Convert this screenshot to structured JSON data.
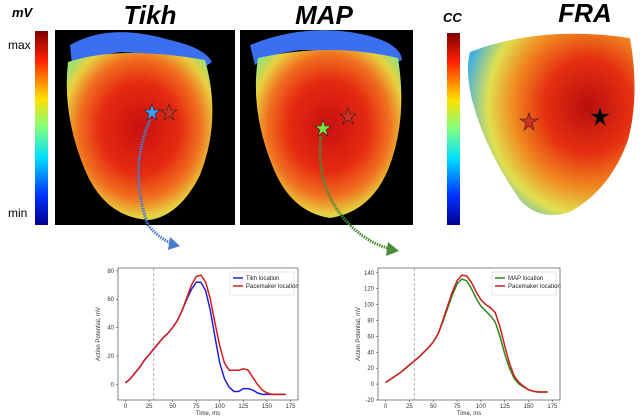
{
  "labels": {
    "unit_left": "mV",
    "unit_right": "CC",
    "max": "max",
    "min": "min",
    "panel_1": "Tikh",
    "panel_2": "MAP",
    "panel_3": "FRA"
  },
  "chart_data": [
    {
      "type": "line",
      "xlabel": "Time, ms",
      "ylabel": "Action Potential, mV",
      "x": [
        0,
        5,
        10,
        15,
        20,
        25,
        30,
        35,
        40,
        45,
        50,
        55,
        60,
        65,
        70,
        75,
        80,
        85,
        90,
        95,
        100,
        105,
        110,
        115,
        120,
        125,
        130,
        135,
        140,
        145,
        150,
        155,
        160,
        165,
        170
      ],
      "xlim": [
        -8,
        183
      ],
      "xticks": [
        0,
        25,
        50,
        75,
        100,
        125,
        150,
        175
      ],
      "ylim": [
        -11,
        82
      ],
      "yticks": [
        0,
        20,
        40,
        60,
        80
      ],
      "vline": 30,
      "legend": "upper right",
      "series": [
        {
          "name": "Tikh location",
          "color": "#1f1fe0",
          "values": [
            1,
            4,
            8,
            12,
            17,
            21,
            25,
            29,
            33,
            36,
            40,
            45,
            52,
            60,
            67,
            72,
            72,
            66,
            52,
            33,
            15,
            4,
            -2,
            -5,
            -5,
            -3,
            -3,
            -4,
            -6,
            -7,
            -7,
            -7,
            -7,
            -7,
            -7
          ]
        },
        {
          "name": "Pacemaker location",
          "color": "#d61a1a",
          "values": [
            1,
            4,
            8,
            12,
            17,
            21,
            25,
            29,
            33,
            36,
            40,
            45,
            52,
            61,
            70,
            76,
            77,
            72,
            60,
            43,
            27,
            15,
            10,
            10,
            10,
            11,
            10,
            5,
            0,
            -4,
            -6,
            -7,
            -7,
            -7,
            -7
          ]
        }
      ]
    },
    {
      "type": "line",
      "xlabel": "Time, ms",
      "ylabel": "Action Potential, mV",
      "x": [
        0,
        5,
        10,
        15,
        20,
        25,
        30,
        35,
        40,
        45,
        50,
        55,
        60,
        65,
        70,
        75,
        80,
        85,
        90,
        95,
        100,
        105,
        110,
        115,
        120,
        125,
        130,
        135,
        140,
        145,
        150,
        155,
        160,
        165,
        170
      ],
      "xlim": [
        -8,
        183
      ],
      "xticks": [
        0,
        25,
        50,
        75,
        100,
        125,
        150,
        175
      ],
      "ylim": [
        -20,
        146
      ],
      "yticks": [
        -20,
        0,
        20,
        40,
        60,
        80,
        100,
        120,
        140
      ],
      "vline": 30,
      "legend": "upper right",
      "series": [
        {
          "name": "MAP location",
          "color": "#2a8a1a",
          "values": [
            2,
            6,
            10,
            14,
            19,
            24,
            29,
            34,
            40,
            46,
            53,
            63,
            78,
            95,
            112,
            126,
            132,
            130,
            120,
            108,
            98,
            92,
            86,
            78,
            60,
            38,
            20,
            7,
            0,
            -4,
            -7,
            -9,
            -10,
            -10,
            -10
          ]
        },
        {
          "name": "Pacemaker location",
          "color": "#d61a1a",
          "values": [
            2,
            6,
            10,
            14,
            19,
            24,
            29,
            34,
            40,
            46,
            53,
            63,
            80,
            98,
            116,
            130,
            137,
            136,
            128,
            116,
            106,
            100,
            96,
            90,
            72,
            48,
            26,
            10,
            2,
            -3,
            -7,
            -9,
            -10,
            -10,
            -10
          ]
        }
      ]
    }
  ]
}
